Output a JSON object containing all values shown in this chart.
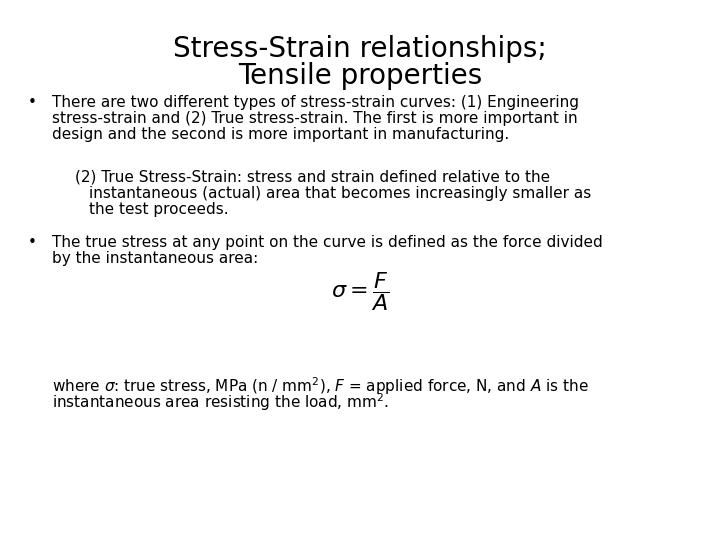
{
  "title_line1": "Stress-Strain relationships;",
  "title_line2": "Tensile properties",
  "title_fontsize": 20,
  "body_fontsize": 11,
  "background_color": "#ffffff",
  "text_color": "#000000",
  "bullet1_line1": "There are two different types of stress-strain curves: (1) Engineering",
  "bullet1_line2": "stress-strain and (2) True stress-strain. The first is more important in",
  "bullet1_line3": "design and the second is more important in manufacturing.",
  "indent_line1": "(2) True Stress-Strain: stress and strain defined relative to the",
  "indent_line2": "     instantaneous (actual) area that becomes increasingly smaller as",
  "indent_line3": "     the test proceeds.",
  "bullet2_line1": "The true stress at any point on the curve is defined as the force divided",
  "bullet2_line2": "by the instantaneous area:",
  "footer_line1": "where σ: true stress, MPa (n / mm²), F = applied force, N, and A is the",
  "footer_line2": "instantaneous area resisting the load, mm²."
}
